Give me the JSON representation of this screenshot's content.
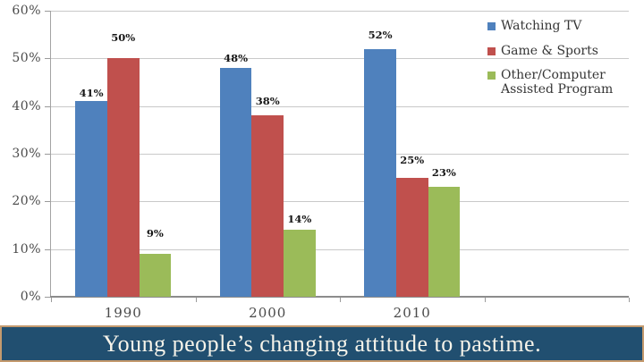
{
  "chart_data": {
    "type": "bar",
    "title": "",
    "categories": [
      "1990",
      "2000",
      "2010"
    ],
    "series": [
      {
        "name": "Watching TV",
        "color": "#4f81bd",
        "values": [
          41,
          48,
          52
        ]
      },
      {
        "name": "Game & Sports",
        "color": "#c0504d",
        "values": [
          50,
          38,
          25
        ]
      },
      {
        "name": "Other/Computer Assisted Program",
        "color": "#9bbb59",
        "values": [
          9,
          14,
          23
        ]
      }
    ],
    "data_label_suffix": "%",
    "data_labels_visible": [
      "41%",
      "48%",
      "52%",
      "50%",
      "38%",
      "25%",
      "9%",
      "14%",
      "23%"
    ],
    "label_gaps": [
      [
        2,
        4,
        9
      ],
      [
        16,
        9,
        13
      ],
      [
        16,
        5,
        9
      ]
    ],
    "ylim": [
      0,
      60
    ],
    "ytick_step": 10,
    "ytick_labels": [
      "0%",
      "10%",
      "20%",
      "30%",
      "40%",
      "50%",
      "60%"
    ],
    "grid": true,
    "legend_position": "top-right",
    "axis_slots": 4,
    "colors": {
      "grid": "#c9c9c9",
      "axis_line": "#8c8c8c",
      "tick_label": "#4a4a4a",
      "data_label": "#161616"
    }
  },
  "banner": {
    "title": "Young people’s changing attitude to pastime.",
    "background": "#214f70",
    "border_color": "#c49a6e",
    "text_color": "#f7f4ea"
  }
}
